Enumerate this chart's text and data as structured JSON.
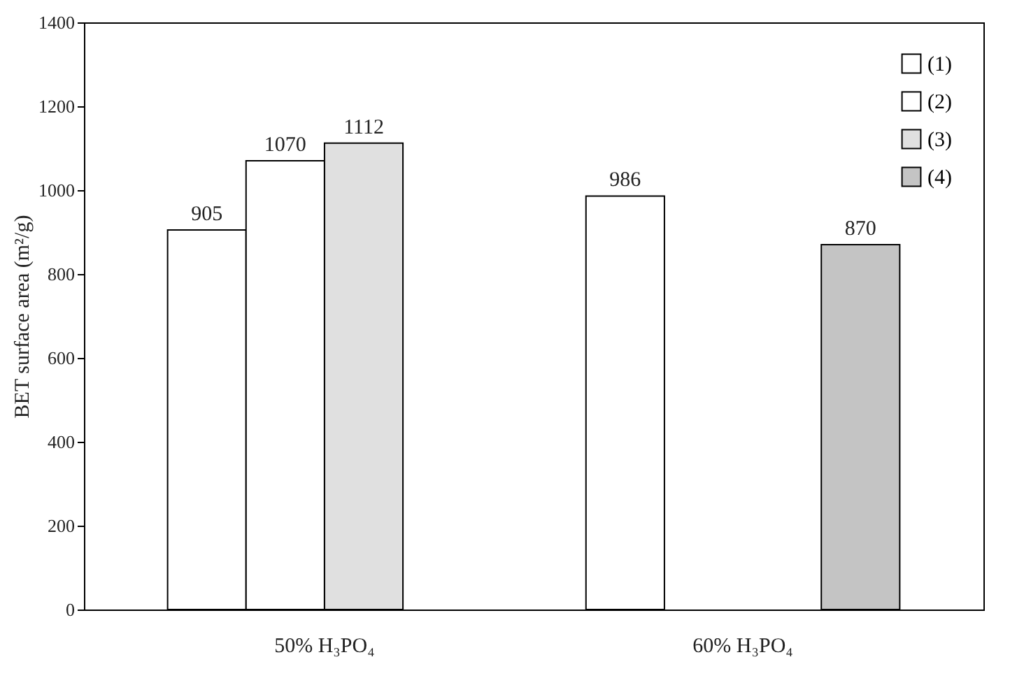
{
  "chart_data": {
    "type": "bar",
    "ylabel": "BET surface area (m²/g)",
    "categories": [
      "50% H₃PO₄",
      "60% H₃PO₄"
    ],
    "series": [
      {
        "name": "(1)",
        "color": "#ffffff",
        "values": [
          905,
          986
        ]
      },
      {
        "name": "(2)",
        "color": "#ffffff",
        "values": [
          1070,
          null
        ]
      },
      {
        "name": "(3)",
        "color": "#e0e0e0",
        "values": [
          1112,
          null
        ]
      },
      {
        "name": "(4)",
        "color": "#c4c4c4",
        "values": [
          null,
          870
        ]
      }
    ],
    "ylim": [
      0,
      1400
    ],
    "yticks": [
      0,
      200,
      400,
      600,
      800,
      1000,
      1200,
      1400
    ],
    "data_labels": true,
    "legend": "top right",
    "grid": false
  }
}
